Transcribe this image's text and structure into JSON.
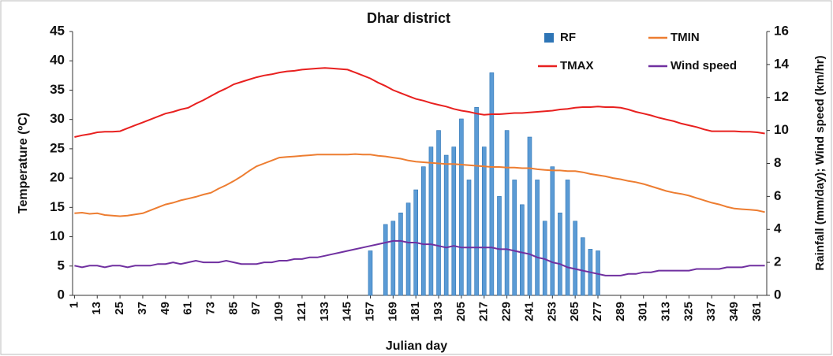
{
  "chart_data": {
    "type": "bar-line",
    "title": "Dhar district",
    "x_label": "Julian day",
    "y_label": "Temperature (ºC)",
    "y2_label": "Rainfall (mm/day); Wind speed (km/hr)",
    "x": [
      1,
      5,
      9,
      13,
      17,
      21,
      25,
      29,
      33,
      37,
      41,
      45,
      49,
      53,
      57,
      61,
      65,
      69,
      73,
      77,
      81,
      85,
      89,
      93,
      97,
      101,
      105,
      109,
      113,
      117,
      121,
      125,
      129,
      133,
      137,
      141,
      145,
      149,
      153,
      157,
      161,
      165,
      169,
      173,
      177,
      181,
      185,
      189,
      193,
      197,
      201,
      205,
      209,
      213,
      217,
      221,
      225,
      229,
      233,
      237,
      241,
      245,
      249,
      253,
      257,
      261,
      265,
      269,
      273,
      277,
      281,
      285,
      289,
      293,
      297,
      301,
      305,
      309,
      313,
      317,
      321,
      325,
      329,
      333,
      337,
      341,
      345,
      349,
      353,
      357,
      361,
      365
    ],
    "xlim": [
      0,
      366
    ],
    "xticks": [
      1,
      13,
      25,
      37,
      49,
      61,
      73,
      85,
      97,
      109,
      121,
      133,
      145,
      157,
      169,
      181,
      193,
      205,
      217,
      229,
      241,
      253,
      265,
      277,
      289,
      301,
      313,
      325,
      337,
      349,
      361
    ],
    "ylim": [
      0,
      45
    ],
    "yticks": [
      0,
      5,
      10,
      15,
      20,
      25,
      30,
      35,
      40,
      45
    ],
    "y2lim": [
      0,
      16
    ],
    "y2ticks": [
      0,
      2,
      4,
      6,
      8,
      10,
      12,
      14,
      16
    ],
    "series": [
      {
        "name": "RF",
        "kind": "bar",
        "axis": "y2",
        "color": "#5b9bd5",
        "values": [
          0,
          0,
          0,
          0,
          0,
          0,
          0,
          0,
          0,
          0,
          0,
          0,
          0,
          0,
          0,
          0,
          0,
          0,
          0,
          0,
          0,
          0,
          0,
          0,
          0,
          0,
          0,
          0,
          0,
          0,
          0,
          0,
          0,
          0,
          0,
          0,
          0,
          0,
          0,
          2.7,
          0,
          4.3,
          4.5,
          5,
          5.6,
          6.4,
          7.8,
          9,
          10,
          8.5,
          9,
          10.7,
          7,
          11.4,
          9,
          13.5,
          6,
          10,
          7,
          5.5,
          9.6,
          7,
          4.5,
          7.8,
          5,
          7,
          4.5,
          3.5,
          2.8,
          2.7,
          0,
          0,
          0,
          0,
          0,
          0,
          0,
          0,
          0,
          0,
          0,
          0,
          0,
          0,
          0,
          0,
          0,
          0,
          0,
          0,
          0,
          0
        ]
      },
      {
        "name": "TMIN",
        "kind": "line",
        "color": "#ed7d31",
        "values": [
          14,
          14.1,
          13.9,
          14,
          13.7,
          13.6,
          13.5,
          13.6,
          13.8,
          14,
          14.5,
          15,
          15.5,
          15.8,
          16.2,
          16.5,
          16.8,
          17.2,
          17.5,
          18.2,
          18.8,
          19.5,
          20.3,
          21.2,
          22,
          22.5,
          23,
          23.5,
          23.6,
          23.7,
          23.8,
          23.9,
          24,
          24,
          24,
          24,
          24,
          24.1,
          24,
          24,
          23.8,
          23.7,
          23.5,
          23.3,
          23,
          22.8,
          22.7,
          22.6,
          22.5,
          22.4,
          22.4,
          22.3,
          22.2,
          22.1,
          22,
          21.9,
          21.9,
          21.8,
          21.8,
          21.7,
          21.7,
          21.5,
          21.4,
          21.3,
          21.3,
          21.2,
          21.2,
          21,
          20.7,
          20.5,
          20.3,
          20,
          19.8,
          19.5,
          19.3,
          19,
          18.6,
          18.2,
          17.8,
          17.5,
          17.3,
          17,
          16.6,
          16.2,
          15.8,
          15.5,
          15.1,
          14.8,
          14.7,
          14.6,
          14.5,
          14.2
        ]
      },
      {
        "name": "TMAX",
        "kind": "line",
        "color": "#e8201f",
        "values": [
          27,
          27.3,
          27.5,
          27.8,
          27.9,
          27.9,
          28,
          28.5,
          29,
          29.5,
          30,
          30.5,
          31,
          31.3,
          31.7,
          32,
          32.7,
          33.3,
          34,
          34.7,
          35.3,
          36,
          36.4,
          36.8,
          37.2,
          37.5,
          37.7,
          38,
          38.2,
          38.3,
          38.5,
          38.6,
          38.7,
          38.8,
          38.7,
          38.6,
          38.5,
          38,
          37.5,
          37,
          36.3,
          35.7,
          35,
          34.5,
          34,
          33.5,
          33.2,
          32.8,
          32.5,
          32.2,
          31.8,
          31.5,
          31.3,
          31,
          30.8,
          30.9,
          30.9,
          31,
          31.1,
          31.1,
          31.2,
          31.3,
          31.4,
          31.5,
          31.7,
          31.8,
          32,
          32.1,
          32.1,
          32.2,
          32.1,
          32.1,
          32,
          31.7,
          31.3,
          31,
          30.7,
          30.3,
          30,
          29.7,
          29.3,
          29,
          28.7,
          28.3,
          28,
          28,
          28,
          28,
          27.9,
          27.9,
          27.8,
          27.6
        ]
      },
      {
        "name": "Wind speed",
        "kind": "line",
        "axis": "y2",
        "color": "#7030a0",
        "values": [
          1.8,
          1.7,
          1.8,
          1.8,
          1.7,
          1.8,
          1.8,
          1.7,
          1.8,
          1.8,
          1.8,
          1.9,
          1.9,
          2.0,
          1.9,
          2.0,
          2.1,
          2.0,
          2.0,
          2.0,
          2.1,
          2.0,
          1.9,
          1.9,
          1.9,
          2.0,
          2.0,
          2.1,
          2.1,
          2.2,
          2.2,
          2.3,
          2.3,
          2.4,
          2.5,
          2.6,
          2.7,
          2.8,
          2.9,
          3.0,
          3.1,
          3.2,
          3.3,
          3.3,
          3.2,
          3.2,
          3.1,
          3.1,
          3.0,
          2.9,
          3.0,
          2.9,
          2.9,
          2.9,
          2.9,
          2.9,
          2.8,
          2.8,
          2.7,
          2.6,
          2.5,
          2.3,
          2.2,
          2.0,
          1.9,
          1.7,
          1.6,
          1.5,
          1.4,
          1.3,
          1.2,
          1.2,
          1.2,
          1.3,
          1.3,
          1.4,
          1.4,
          1.5,
          1.5,
          1.5,
          1.5,
          1.5,
          1.6,
          1.6,
          1.6,
          1.6,
          1.7,
          1.7,
          1.7,
          1.8,
          1.8,
          1.8
        ]
      }
    ]
  }
}
